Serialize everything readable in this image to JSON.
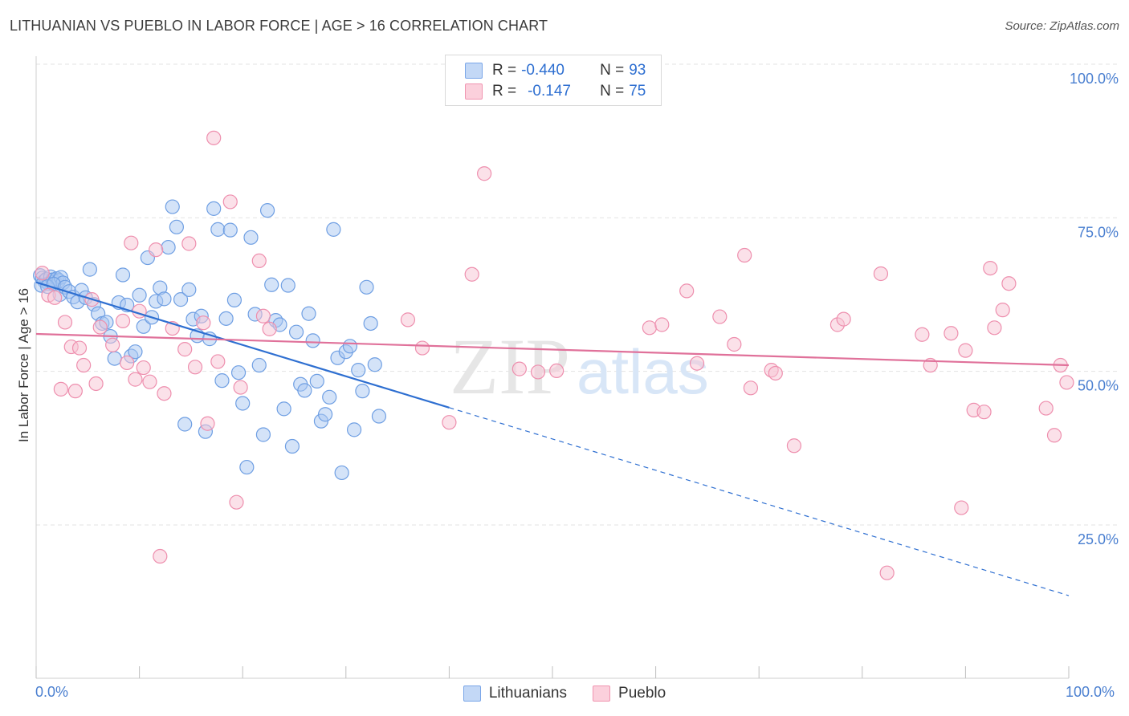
{
  "header": {
    "title": "LITHUANIAN VS PUEBLO IN LABOR FORCE | AGE > 16 CORRELATION CHART",
    "source": "Source: ZipAtlas.com"
  },
  "legend": {
    "row1": {
      "r_label": "R =",
      "r_value": "-0.440",
      "n_label": "N =",
      "n_value": "93"
    },
    "row2": {
      "r_label": "R =",
      "r_value": "-0.147",
      "n_label": "N =",
      "n_value": "75"
    }
  },
  "bottom_legend": {
    "series1": "Lithuanians",
    "series2": "Pueblo"
  },
  "watermark": {
    "part1": "ZIP",
    "part2": "atlas"
  },
  "colors": {
    "blue_fill": "#a9c8f2",
    "blue_stroke": "#6f9fe3",
    "blue_line": "#2e6fd1",
    "pink_fill": "#f8c3d3",
    "pink_stroke": "#ee8fae",
    "pink_line": "#e0719a",
    "grid": "#e3e3e3",
    "tick_label": "#4a7fd0"
  },
  "chart_data": {
    "type": "scatter",
    "title": "LITHUANIAN VS PUEBLO IN LABOR FORCE | AGE > 16 CORRELATION CHART",
    "xlabel": "",
    "ylabel": "In Labor Force | Age > 16",
    "xlim": [
      0,
      100
    ],
    "ylim": [
      0,
      105
    ],
    "x_tick_labels": [
      "0.0%",
      "100.0%"
    ],
    "y_ticks": [
      25,
      50,
      75,
      100
    ],
    "y_tick_labels": [
      "25.0%",
      "50.0%",
      "75.0%",
      "100.0%"
    ],
    "series": [
      {
        "name": "Lithuanians",
        "r": -0.44,
        "n": 93,
        "trend": {
          "x0": 0,
          "y0": 64.5,
          "x_solid_end": 40,
          "y_solid_end": 44.1,
          "x1": 100,
          "y1": 13.5
        },
        "points": [
          [
            0.4,
            65.6
          ],
          [
            0.6,
            65.2
          ],
          [
            0.8,
            64.7
          ],
          [
            1.0,
            65.0
          ],
          [
            1.2,
            64.3
          ],
          [
            1.4,
            65.4
          ],
          [
            1.6,
            64.9
          ],
          [
            1.8,
            64.6
          ],
          [
            2.0,
            65.1
          ],
          [
            2.2,
            64.8
          ],
          [
            2.4,
            65.3
          ],
          [
            2.6,
            64.4
          ],
          [
            0.5,
            64.0
          ],
          [
            1.1,
            63.8
          ],
          [
            1.7,
            64.2
          ],
          [
            2.3,
            62.5
          ],
          [
            2.8,
            63.7
          ],
          [
            3.2,
            63.0
          ],
          [
            3.6,
            62.1
          ],
          [
            4.0,
            61.3
          ],
          [
            4.4,
            63.2
          ],
          [
            4.8,
            62.0
          ],
          [
            5.2,
            66.6
          ],
          [
            5.6,
            60.9
          ],
          [
            6.0,
            59.4
          ],
          [
            6.4,
            57.8
          ],
          [
            6.8,
            58.0
          ],
          [
            7.2,
            55.7
          ],
          [
            7.6,
            52.1
          ],
          [
            8.0,
            61.2
          ],
          [
            8.4,
            65.7
          ],
          [
            8.8,
            60.8
          ],
          [
            9.2,
            52.5
          ],
          [
            9.6,
            53.2
          ],
          [
            10.0,
            62.4
          ],
          [
            10.4,
            57.3
          ],
          [
            10.8,
            68.5
          ],
          [
            11.2,
            58.8
          ],
          [
            11.6,
            61.4
          ],
          [
            12.0,
            63.6
          ],
          [
            12.4,
            61.8
          ],
          [
            12.8,
            70.2
          ],
          [
            13.2,
            76.8
          ],
          [
            13.6,
            73.5
          ],
          [
            14.0,
            61.7
          ],
          [
            14.4,
            41.4
          ],
          [
            14.8,
            63.3
          ],
          [
            15.2,
            58.5
          ],
          [
            15.6,
            55.8
          ],
          [
            16.0,
            59.0
          ],
          [
            16.4,
            40.2
          ],
          [
            16.8,
            55.3
          ],
          [
            17.2,
            76.5
          ],
          [
            17.6,
            73.1
          ],
          [
            18.0,
            48.5
          ],
          [
            18.4,
            58.6
          ],
          [
            18.8,
            73.0
          ],
          [
            19.2,
            61.6
          ],
          [
            19.6,
            49.8
          ],
          [
            20.0,
            44.8
          ],
          [
            20.4,
            34.4
          ],
          [
            20.8,
            71.8
          ],
          [
            21.2,
            59.3
          ],
          [
            21.6,
            51.0
          ],
          [
            22.0,
            39.7
          ],
          [
            22.4,
            76.2
          ],
          [
            22.8,
            64.1
          ],
          [
            23.2,
            58.3
          ],
          [
            23.6,
            57.6
          ],
          [
            24.0,
            43.9
          ],
          [
            24.4,
            64.0
          ],
          [
            24.8,
            37.8
          ],
          [
            25.2,
            56.4
          ],
          [
            25.6,
            47.9
          ],
          [
            26.0,
            46.9
          ],
          [
            26.4,
            59.4
          ],
          [
            26.8,
            55.0
          ],
          [
            27.2,
            48.4
          ],
          [
            27.6,
            41.9
          ],
          [
            28.0,
            43.0
          ],
          [
            28.4,
            45.8
          ],
          [
            28.8,
            73.1
          ],
          [
            29.2,
            52.2
          ],
          [
            29.6,
            33.5
          ],
          [
            30.0,
            53.2
          ],
          [
            30.4,
            54.1
          ],
          [
            30.8,
            40.5
          ],
          [
            31.2,
            50.2
          ],
          [
            31.6,
            46.8
          ],
          [
            32.0,
            63.7
          ],
          [
            32.4,
            57.8
          ],
          [
            32.8,
            51.1
          ],
          [
            33.2,
            42.7
          ]
        ]
      },
      {
        "name": "Pueblo",
        "r": -0.147,
        "n": 75,
        "trend": {
          "x0": 0,
          "y0": 56.1,
          "x1": 100,
          "y1": 51.0
        },
        "points": [
          [
            0.6,
            66.0
          ],
          [
            1.2,
            62.4
          ],
          [
            1.8,
            62.0
          ],
          [
            2.4,
            47.1
          ],
          [
            2.8,
            58.0
          ],
          [
            3.4,
            54.0
          ],
          [
            3.8,
            46.8
          ],
          [
            4.2,
            53.8
          ],
          [
            4.6,
            51.0
          ],
          [
            5.4,
            61.7
          ],
          [
            5.8,
            48.0
          ],
          [
            6.2,
            57.2
          ],
          [
            7.4,
            54.3
          ],
          [
            8.4,
            58.2
          ],
          [
            8.8,
            51.4
          ],
          [
            9.2,
            70.9
          ],
          [
            9.6,
            48.7
          ],
          [
            10.0,
            59.8
          ],
          [
            10.4,
            50.6
          ],
          [
            11.0,
            48.3
          ],
          [
            11.6,
            69.8
          ],
          [
            12.0,
            19.9
          ],
          [
            12.4,
            46.4
          ],
          [
            13.2,
            57.0
          ],
          [
            14.4,
            53.6
          ],
          [
            14.8,
            70.8
          ],
          [
            15.4,
            50.7
          ],
          [
            16.2,
            57.9
          ],
          [
            16.6,
            41.5
          ],
          [
            17.2,
            88.0
          ],
          [
            17.6,
            51.6
          ],
          [
            18.8,
            77.6
          ],
          [
            19.4,
            28.7
          ],
          [
            19.8,
            47.4
          ],
          [
            21.6,
            68.0
          ],
          [
            22.0,
            59.0
          ],
          [
            22.6,
            56.9
          ],
          [
            36.0,
            58.4
          ],
          [
            37.4,
            53.8
          ],
          [
            40.0,
            41.7
          ],
          [
            42.2,
            65.8
          ],
          [
            43.4,
            82.2
          ],
          [
            46.8,
            50.4
          ],
          [
            48.6,
            49.9
          ],
          [
            50.4,
            50.1
          ],
          [
            59.4,
            57.1
          ],
          [
            60.6,
            57.6
          ],
          [
            63.0,
            63.1
          ],
          [
            64.0,
            51.3
          ],
          [
            66.2,
            58.9
          ],
          [
            67.6,
            54.4
          ],
          [
            68.6,
            68.9
          ],
          [
            69.2,
            47.3
          ],
          [
            71.2,
            50.2
          ],
          [
            71.6,
            49.7
          ],
          [
            73.4,
            37.9
          ],
          [
            77.6,
            57.6
          ],
          [
            78.2,
            58.5
          ],
          [
            81.8,
            65.9
          ],
          [
            82.4,
            17.2
          ],
          [
            85.8,
            56.0
          ],
          [
            86.6,
            51.0
          ],
          [
            88.6,
            56.2
          ],
          [
            89.6,
            27.8
          ],
          [
            90.0,
            53.4
          ],
          [
            90.8,
            43.7
          ],
          [
            91.8,
            43.4
          ],
          [
            92.4,
            66.8
          ],
          [
            92.8,
            57.1
          ],
          [
            93.6,
            60.0
          ],
          [
            94.2,
            64.3
          ],
          [
            97.8,
            44.0
          ],
          [
            98.6,
            39.6
          ],
          [
            99.2,
            51.0
          ],
          [
            99.8,
            48.2
          ]
        ]
      }
    ]
  }
}
